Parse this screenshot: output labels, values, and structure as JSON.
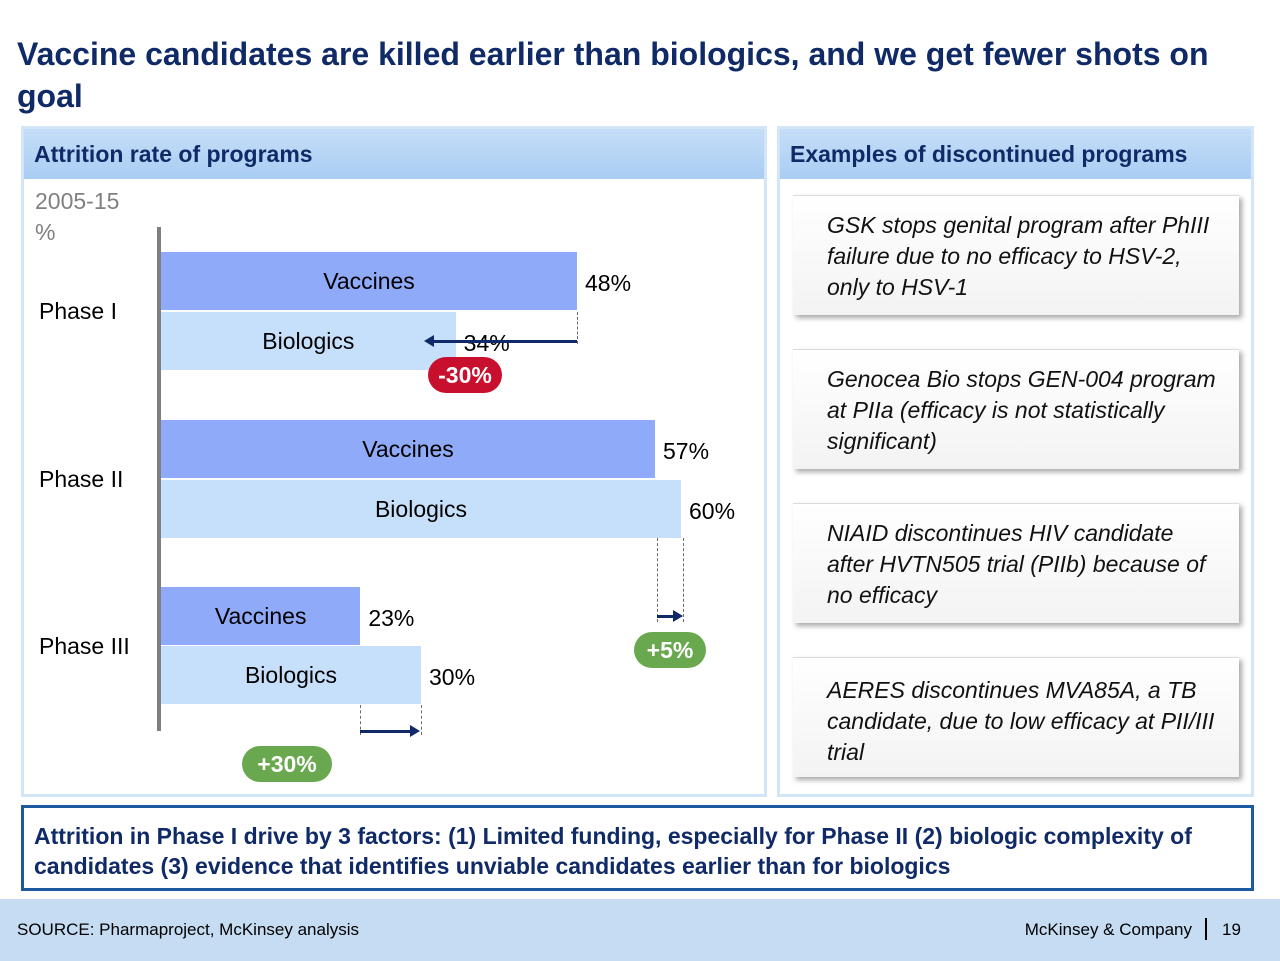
{
  "title": "Vaccine candidates are killed earlier than biologics, and we get fewer shots on goal",
  "left_panel": {
    "header": "Attrition rate of programs"
  },
  "right_panel": {
    "header": "Examples of discontinued programs",
    "examples": [
      "GSK stops genital program after PhIII failure due to no efficacy to HSV-2, only to HSV-1",
      "Genocea Bio stops GEN-004 program at PIIa (efficacy is not statistically significant)",
      "NIAID discontinues HIV candidate after HVTN505 trial (PIIb) because of no efficacy",
      "AERES discontinues MVA85A, a TB candidate, due to low efficacy at PII/III trial"
    ]
  },
  "chart_data": {
    "type": "bar",
    "orientation": "horizontal",
    "unit_line1": "2005-15",
    "unit_line2": "%",
    "categories": [
      "Phase I",
      "Phase II",
      "Phase III"
    ],
    "series": [
      {
        "name": "Vaccines",
        "values": [
          48,
          57,
          23
        ]
      },
      {
        "name": "Biologics",
        "values": [
          34,
          60,
          30
        ]
      }
    ],
    "value_labels": {
      "Vaccines": [
        "48%",
        "57%",
        "23%"
      ],
      "Biologics": [
        "34%",
        "60%",
        "30%"
      ]
    },
    "differences": [
      "-30%",
      "+5%",
      "+30%"
    ],
    "difference_colors": [
      "#c8102e",
      "#6aa84f",
      "#6aa84f"
    ],
    "colors": {
      "Vaccines": "#8faaf8",
      "Biologics": "#c6dffa"
    },
    "xlim": [
      0,
      60
    ],
    "axis_labels_shown": false,
    "grid": false
  },
  "conclusion": "Attrition in Phase I drive by 3 factors: (1) Limited funding, especially for Phase II (2) biologic complexity of candidates (3) evidence that identifies unviable candidates earlier than for biologics",
  "footer": {
    "source": "SOURCE: Pharmaproject, McKinsey analysis",
    "brand": "McKinsey & Company",
    "page": "19"
  }
}
